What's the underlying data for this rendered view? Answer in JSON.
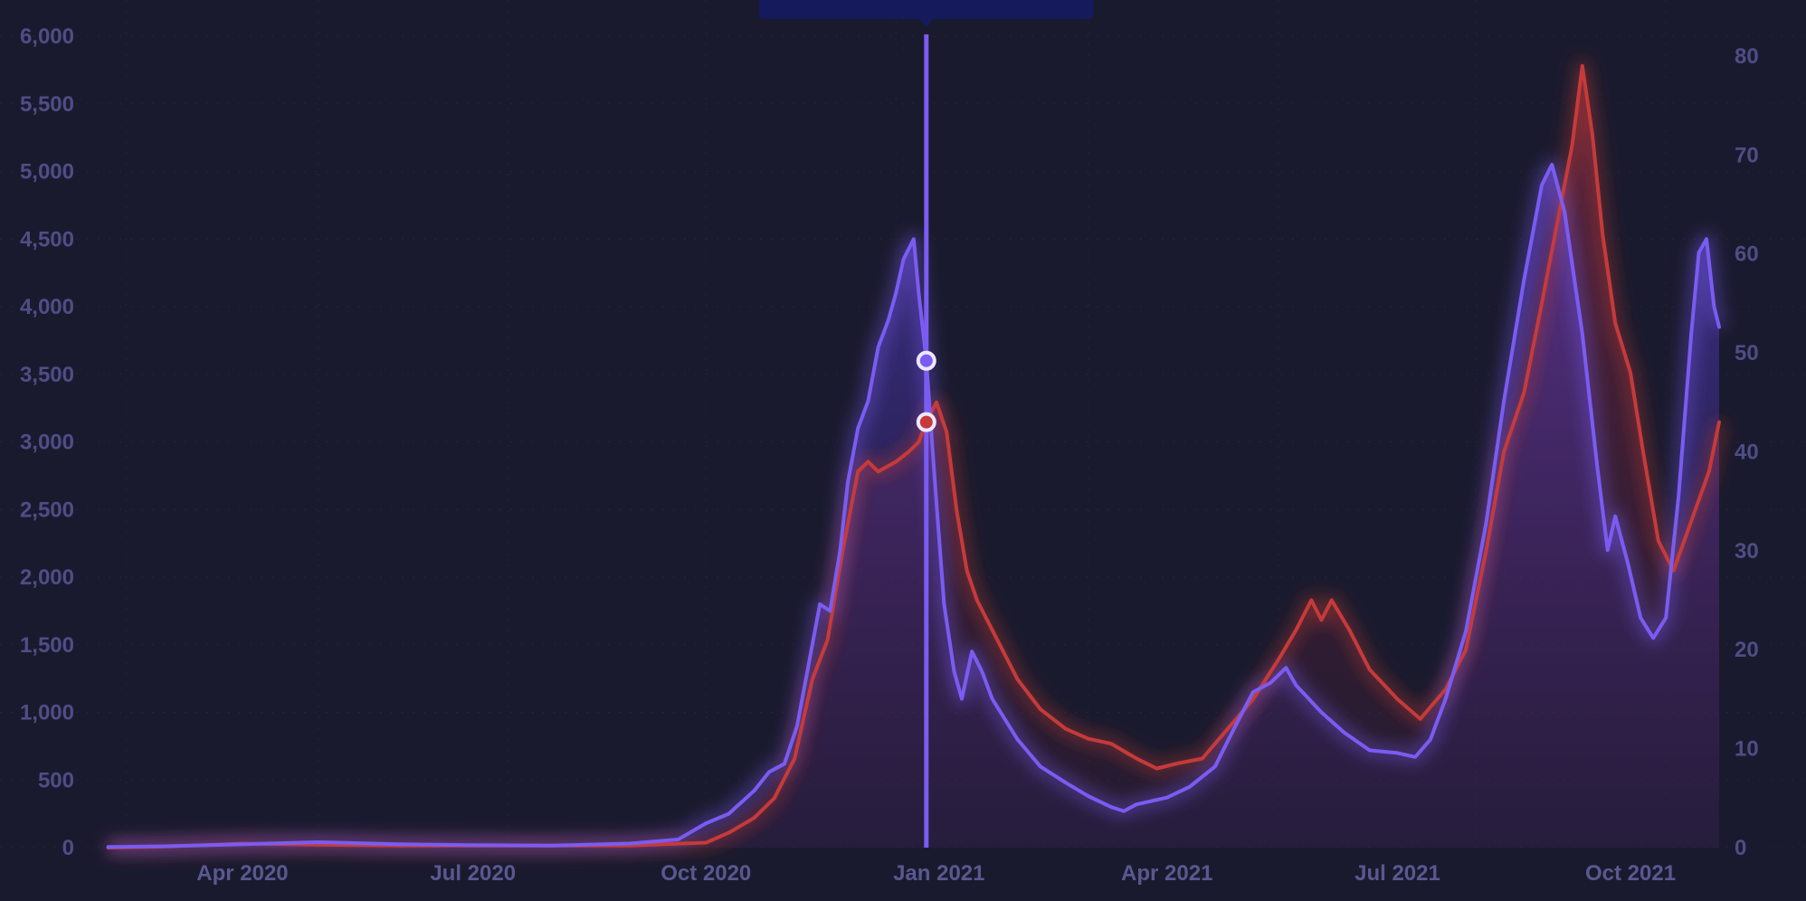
{
  "chart_data": {
    "type": "line",
    "title": "",
    "xlabel": "",
    "ylabel_left": "",
    "ylabel_right": "",
    "x_range": [
      "2020-02-01",
      "2021-11-05"
    ],
    "y_left_lim": [
      0,
      6000
    ],
    "y_right_lim": [
      0,
      82
    ],
    "y_left_ticks": [
      "0",
      "500",
      "1,000",
      "1,500",
      "2,000",
      "2,500",
      "3,000",
      "3,500",
      "4,000",
      "4,500",
      "5,000",
      "5,500",
      "6,000"
    ],
    "y_right_ticks": [
      "0",
      "10",
      "20",
      "30",
      "40",
      "50",
      "60",
      "70",
      "80"
    ],
    "x_ticks": [
      {
        "date": "2020-04-01",
        "label": "Apr 2020"
      },
      {
        "date": "2020-07-01",
        "label": "Jul 2020"
      },
      {
        "date": "2020-10-01",
        "label": "Oct 2020"
      },
      {
        "date": "2021-01-01",
        "label": "Jan 2021"
      },
      {
        "date": "2021-04-01",
        "label": "Apr 2021"
      },
      {
        "date": "2021-07-01",
        "label": "Jul 2021"
      },
      {
        "date": "2021-10-01",
        "label": "Oct 2021"
      }
    ],
    "grid": true,
    "legend": "none",
    "hover_date": "2020-12-27",
    "series": [
      {
        "axis": "left",
        "color": "#7b5cf0",
        "points": [
          [
            "2020-02-08",
            5
          ],
          [
            "2020-03-01",
            10
          ],
          [
            "2020-04-01",
            25
          ],
          [
            "2020-05-01",
            40
          ],
          [
            "2020-06-01",
            25
          ],
          [
            "2020-07-01",
            18
          ],
          [
            "2020-08-01",
            15
          ],
          [
            "2020-09-01",
            30
          ],
          [
            "2020-09-20",
            60
          ],
          [
            "2020-10-01",
            180
          ],
          [
            "2020-10-10",
            250
          ],
          [
            "2020-10-20",
            420
          ],
          [
            "2020-10-26",
            560
          ],
          [
            "2020-11-01",
            620
          ],
          [
            "2020-11-06",
            900
          ],
          [
            "2020-11-10",
            1300
          ],
          [
            "2020-11-15",
            1800
          ],
          [
            "2020-11-19",
            1750
          ],
          [
            "2020-11-23",
            2200
          ],
          [
            "2020-11-26",
            2700
          ],
          [
            "2020-11-30",
            3100
          ],
          [
            "2020-12-04",
            3300
          ],
          [
            "2020-12-08",
            3700
          ],
          [
            "2020-12-12",
            3900
          ],
          [
            "2020-12-15",
            4100
          ],
          [
            "2020-12-18",
            4350
          ],
          [
            "2020-12-22",
            4500
          ],
          [
            "2020-12-24",
            4100
          ],
          [
            "2020-12-27",
            3600
          ],
          [
            "2020-12-30",
            2800
          ],
          [
            "2021-01-03",
            1800
          ],
          [
            "2021-01-07",
            1300
          ],
          [
            "2021-01-10",
            1100
          ],
          [
            "2021-01-14",
            1450
          ],
          [
            "2021-01-18",
            1300
          ],
          [
            "2021-01-22",
            1100
          ],
          [
            "2021-02-01",
            800
          ],
          [
            "2021-02-10",
            600
          ],
          [
            "2021-02-20",
            480
          ],
          [
            "2021-03-01",
            380
          ],
          [
            "2021-03-10",
            300
          ],
          [
            "2021-03-15",
            270
          ],
          [
            "2021-03-20",
            320
          ],
          [
            "2021-04-01",
            370
          ],
          [
            "2021-04-10",
            450
          ],
          [
            "2021-04-20",
            600
          ],
          [
            "2021-04-28",
            900
          ],
          [
            "2021-05-05",
            1150
          ],
          [
            "2021-05-12",
            1220
          ],
          [
            "2021-05-18",
            1330
          ],
          [
            "2021-05-22",
            1200
          ],
          [
            "2021-06-01",
            1000
          ],
          [
            "2021-06-10",
            850
          ],
          [
            "2021-06-20",
            720
          ],
          [
            "2021-07-01",
            700
          ],
          [
            "2021-07-08",
            670
          ],
          [
            "2021-07-14",
            800
          ],
          [
            "2021-07-20",
            1100
          ],
          [
            "2021-07-28",
            1600
          ],
          [
            "2021-08-05",
            2400
          ],
          [
            "2021-08-12",
            3300
          ],
          [
            "2021-08-20",
            4200
          ],
          [
            "2021-08-27",
            4900
          ],
          [
            "2021-08-31",
            5050
          ],
          [
            "2021-09-05",
            4700
          ],
          [
            "2021-09-12",
            3800
          ],
          [
            "2021-09-18",
            2800
          ],
          [
            "2021-09-22",
            2200
          ],
          [
            "2021-09-25",
            2450
          ],
          [
            "2021-09-30",
            2100
          ],
          [
            "2021-10-05",
            1700
          ],
          [
            "2021-10-10",
            1550
          ],
          [
            "2021-10-15",
            1700
          ],
          [
            "2021-10-20",
            2600
          ],
          [
            "2021-10-25",
            3800
          ],
          [
            "2021-10-28",
            4400
          ],
          [
            "2021-10-31",
            4500
          ],
          [
            "2021-11-03",
            4000
          ],
          [
            "2021-11-05",
            3850
          ]
        ]
      },
      {
        "axis": "right",
        "color": "#c0392b",
        "points": [
          [
            "2020-02-08",
            0
          ],
          [
            "2020-03-01",
            0.1
          ],
          [
            "2020-04-01",
            0.4
          ],
          [
            "2020-05-01",
            0.3
          ],
          [
            "2020-06-01",
            0.2
          ],
          [
            "2020-07-01",
            0.2
          ],
          [
            "2020-08-01",
            0.2
          ],
          [
            "2020-09-01",
            0.2
          ],
          [
            "2020-10-01",
            0.5
          ],
          [
            "2020-10-10",
            1.5
          ],
          [
            "2020-10-20",
            3
          ],
          [
            "2020-10-28",
            5
          ],
          [
            "2020-11-05",
            9
          ],
          [
            "2020-11-12",
            17
          ],
          [
            "2020-11-18",
            21
          ],
          [
            "2020-11-24",
            30
          ],
          [
            "2020-11-30",
            38
          ],
          [
            "2020-12-04",
            39
          ],
          [
            "2020-12-08",
            38
          ],
          [
            "2020-12-15",
            39
          ],
          [
            "2020-12-20",
            40
          ],
          [
            "2020-12-24",
            41
          ],
          [
            "2020-12-27",
            43
          ],
          [
            "2020-12-31",
            45
          ],
          [
            "2021-01-04",
            42
          ],
          [
            "2021-01-08",
            34
          ],
          [
            "2021-01-12",
            28
          ],
          [
            "2021-01-16",
            25
          ],
          [
            "2021-01-22",
            22
          ],
          [
            "2021-02-01",
            17
          ],
          [
            "2021-02-10",
            14
          ],
          [
            "2021-02-20",
            12
          ],
          [
            "2021-03-01",
            11
          ],
          [
            "2021-03-10",
            10.5
          ],
          [
            "2021-03-20",
            9
          ],
          [
            "2021-03-28",
            8
          ],
          [
            "2021-04-05",
            8.5
          ],
          [
            "2021-04-15",
            9
          ],
          [
            "2021-04-25",
            12
          ],
          [
            "2021-05-05",
            15
          ],
          [
            "2021-05-15",
            19
          ],
          [
            "2021-05-22",
            22
          ],
          [
            "2021-05-28",
            25
          ],
          [
            "2021-06-01",
            23
          ],
          [
            "2021-06-05",
            25
          ],
          [
            "2021-06-12",
            22
          ],
          [
            "2021-06-20",
            18
          ],
          [
            "2021-07-01",
            15
          ],
          [
            "2021-07-10",
            13
          ],
          [
            "2021-07-20",
            16
          ],
          [
            "2021-07-28",
            20
          ],
          [
            "2021-08-05",
            30
          ],
          [
            "2021-08-12",
            40
          ],
          [
            "2021-08-20",
            46
          ],
          [
            "2021-08-27",
            55
          ],
          [
            "2021-09-02",
            63
          ],
          [
            "2021-09-08",
            71
          ],
          [
            "2021-09-12",
            79
          ],
          [
            "2021-09-16",
            72
          ],
          [
            "2021-09-20",
            62
          ],
          [
            "2021-09-25",
            53
          ],
          [
            "2021-10-01",
            48
          ],
          [
            "2021-10-06",
            40
          ],
          [
            "2021-10-12",
            31
          ],
          [
            "2021-10-18",
            28
          ],
          [
            "2021-10-25",
            33
          ],
          [
            "2021-11-01",
            38
          ],
          [
            "2021-11-05",
            43
          ]
        ]
      }
    ]
  }
}
